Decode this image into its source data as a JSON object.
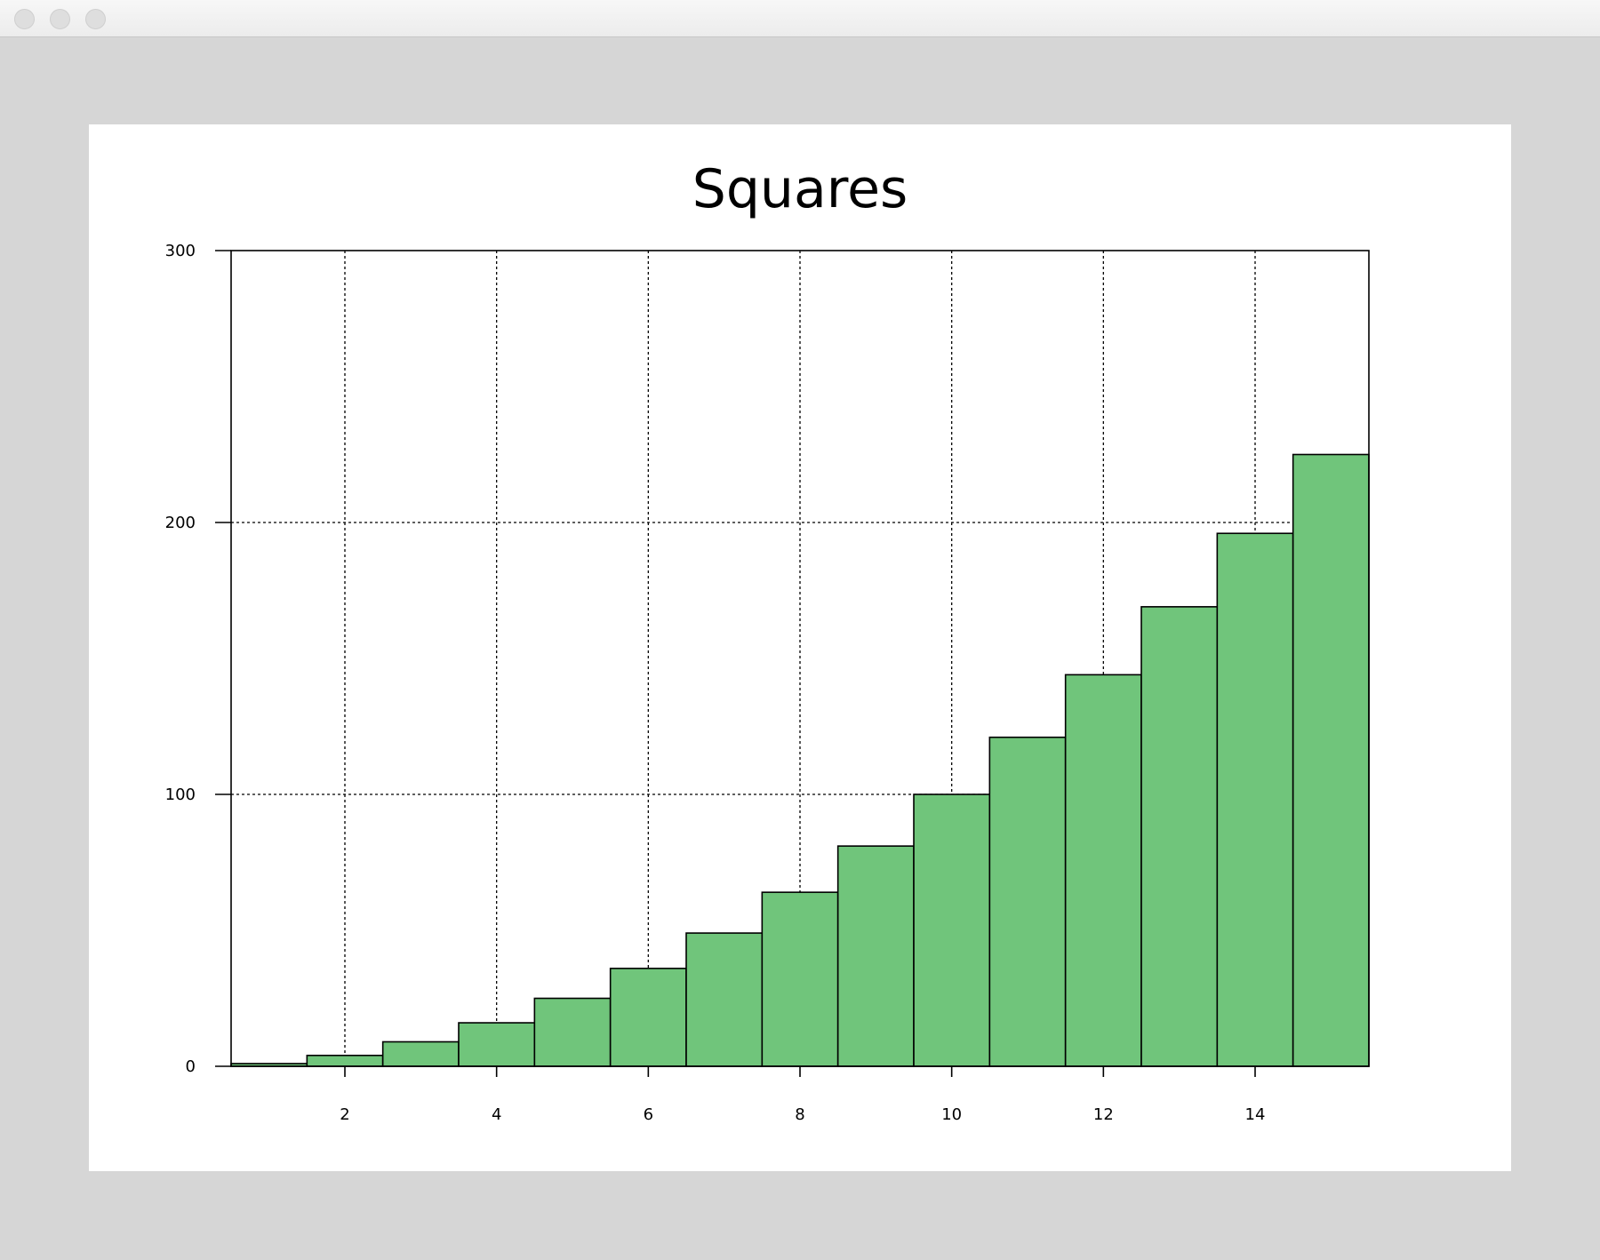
{
  "window": {
    "buttons": [
      "close-button",
      "minimize-button",
      "zoom-button"
    ]
  },
  "chart_data": {
    "type": "bar",
    "title": "Squares",
    "xlabel": "",
    "ylabel": "",
    "x": [
      1,
      2,
      3,
      4,
      5,
      6,
      7,
      8,
      9,
      10,
      11,
      12,
      13,
      14,
      15
    ],
    "values": [
      1,
      4,
      9,
      16,
      25,
      36,
      49,
      64,
      81,
      100,
      121,
      144,
      169,
      196,
      225
    ],
    "xlim": [
      0.5,
      15.5
    ],
    "ylim": [
      0,
      300
    ],
    "xticks": [
      2,
      4,
      6,
      8,
      10,
      12,
      14
    ],
    "xtick_labels": [
      "2",
      "4",
      "6",
      "8",
      "10",
      "12",
      "14"
    ],
    "yticks": [
      0,
      100,
      200,
      300
    ],
    "ytick_labels": [
      "0",
      "100",
      "200",
      "300"
    ],
    "grid": true,
    "grid_style": "dotted",
    "bar_color": "#70c57b",
    "edge_color": "#000000"
  }
}
